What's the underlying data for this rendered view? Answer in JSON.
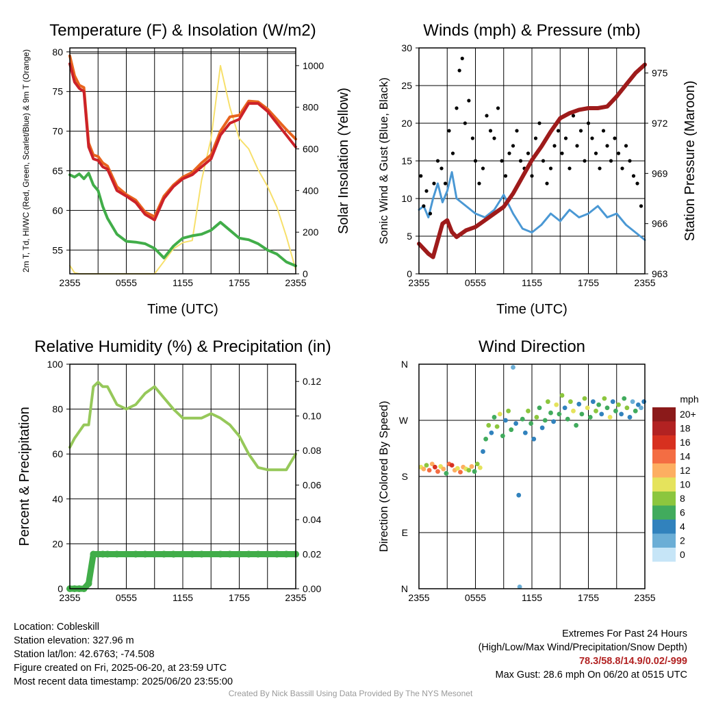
{
  "footer": {
    "location": "Location: Cobleskill",
    "elevation": "Station elevation: 327.96 m",
    "latlon": "Station lat/lon: 42.6763; -74.508",
    "created": "Figure created on Fri, 2025-06-20, at 23:59 UTC",
    "recent": "Most recent data timestamp: 2025/06/20 23:55:00",
    "extremes_title": "Extremes For Past 24 Hours",
    "extremes_sub": "(High/Low/Max Wind/Precipitation/Snow Depth)",
    "extremes_values": "78.3/58.8/14.9/0.02/-999",
    "max_gust": "Max Gust: 28.6 mph On 06/20 at 0515 UTC",
    "credit": "Created By Nick Bassill Using Data Provided By The NYS Mesonet"
  },
  "colors": {
    "temp": "#cc2229",
    "temp_hi": "#e8641e",
    "dew": "#41ad49",
    "solar": "#f7e06b",
    "gust": "#000000",
    "wind": "#4a98d4",
    "pressure": "#9e1b1b",
    "rh": "#96c85a",
    "precip": "#41ad49"
  },
  "chart_data": [
    {
      "type": "line",
      "title": "Temperature (F) & Insolation (W/m2)",
      "xlabel": "Time (UTC)",
      "ylabel": "2m T, Td, HI/WC (Red, Green, Scarlet/Blue) & 9m T (Orange)",
      "ylabel_right": "Solar Insolation (Yellow)",
      "x_ticks": [
        "2355",
        "0555",
        "1155",
        "1755",
        "2355"
      ],
      "ylim": [
        52,
        80.5
      ],
      "y_ticks": [
        55,
        60,
        65,
        70,
        75,
        80
      ],
      "ylim_right": [
        0,
        1085
      ],
      "y_ticks_right": [
        0,
        200,
        400,
        600,
        800,
        1000
      ],
      "grid": true,
      "x_hours": [
        0,
        0.5,
        1,
        1.5,
        2,
        2.5,
        3,
        3.5,
        4,
        5,
        6,
        7,
        8,
        9,
        10,
        11,
        12,
        13,
        14,
        15,
        16,
        17,
        18,
        19,
        20,
        21,
        22,
        23,
        24
      ],
      "series": [
        {
          "name": "2m T",
          "color_key": "temp",
          "values": [
            78.5,
            76.2,
            75.4,
            75.0,
            68.0,
            66.5,
            66.3,
            65.5,
            65.2,
            62.5,
            61.8,
            61.0,
            59.5,
            58.8,
            61.5,
            63.0,
            64.0,
            64.5,
            65.5,
            66.5,
            69.5,
            71.0,
            71.5,
            73.5,
            73.5,
            72.5,
            71.0,
            69.5,
            68.0
          ]
        },
        {
          "name": "9m T",
          "color_key": "temp_hi",
          "values": [
            79.5,
            77.0,
            75.8,
            75.5,
            68.5,
            67.0,
            66.8,
            66.0,
            65.6,
            63.0,
            62.0,
            61.3,
            59.8,
            59.2,
            61.8,
            63.2,
            64.2,
            64.8,
            66.0,
            67.0,
            70.0,
            71.8,
            72.0,
            73.8,
            73.7,
            72.8,
            71.5,
            70.2,
            69.0
          ]
        },
        {
          "name": "Td",
          "color_key": "dew",
          "values": [
            64.5,
            64.2,
            64.6,
            64.0,
            64.7,
            63.2,
            62.5,
            60.5,
            59.0,
            57.0,
            56.1,
            56.0,
            55.8,
            55.2,
            54.0,
            55.5,
            56.5,
            56.8,
            57.0,
            57.5,
            58.5,
            57.5,
            56.5,
            56.3,
            55.8,
            55.0,
            54.5,
            53.5,
            53.0
          ]
        },
        {
          "name": "Solar",
          "axis": "right",
          "color_key": "solar",
          "values": [
            40,
            5,
            0,
            0,
            0,
            0,
            0,
            0,
            0,
            0,
            0,
            0,
            0,
            0,
            60,
            120,
            150,
            160,
            450,
            650,
            1000,
            800,
            650,
            600,
            500,
            420,
            320,
            180,
            20
          ]
        }
      ]
    },
    {
      "type": "line",
      "title": "Winds (mph) & Pressure (mb)",
      "xlabel": "Time (UTC)",
      "ylabel": "Sonic Wind & Gust (Blue, Black)",
      "ylabel_right": "Station Pressure (Maroon)",
      "x_ticks": [
        "2355",
        "0555",
        "1155",
        "1755",
        "2355"
      ],
      "ylim": [
        0,
        30
      ],
      "y_ticks": [
        0,
        5,
        10,
        15,
        20,
        25,
        30
      ],
      "ylim_right": [
        963,
        976.5
      ],
      "y_ticks_right": [
        963,
        966,
        969,
        972,
        975
      ],
      "grid": true,
      "x_hours": [
        0,
        0.5,
        1,
        1.5,
        2,
        2.5,
        3,
        3.5,
        4,
        5,
        6,
        7,
        8,
        9,
        10,
        11,
        12,
        13,
        14,
        15,
        16,
        17,
        18,
        19,
        20,
        21,
        22,
        23,
        24
      ],
      "series": [
        {
          "name": "Sonic Wind",
          "color_key": "wind",
          "values": [
            8.5,
            9.0,
            7.5,
            10.0,
            12.0,
            9.5,
            11.0,
            13.5,
            10.0,
            9.0,
            8.0,
            7.5,
            8.5,
            10.5,
            8.0,
            6.0,
            5.5,
            6.5,
            8.0,
            7.0,
            8.5,
            7.5,
            8.0,
            9.0,
            7.5,
            8.0,
            6.5,
            5.5,
            4.5
          ]
        },
        {
          "name": "Gust",
          "color_key": "gust",
          "points": [
            [
              0.2,
              13
            ],
            [
              0.5,
              9
            ],
            [
              0.8,
              11
            ],
            [
              1.2,
              8
            ],
            [
              1.6,
              12
            ],
            [
              2.0,
              15
            ],
            [
              2.4,
              14
            ],
            [
              2.8,
              12
            ],
            [
              3.2,
              19
            ],
            [
              3.6,
              16
            ],
            [
              4.0,
              22
            ],
            [
              4.3,
              27
            ],
            [
              4.6,
              28.6
            ],
            [
              4.9,
              20
            ],
            [
              5.3,
              23
            ],
            [
              5.7,
              18
            ],
            [
              6.0,
              15
            ],
            [
              6.4,
              12
            ],
            [
              6.8,
              14
            ],
            [
              7.2,
              21
            ],
            [
              7.6,
              19
            ],
            [
              8.0,
              18
            ],
            [
              8.4,
              22
            ],
            [
              8.8,
              15
            ],
            [
              9.2,
              13
            ],
            [
              9.6,
              16
            ],
            [
              10.0,
              17
            ],
            [
              10.4,
              19
            ],
            [
              10.8,
              15
            ],
            [
              11.2,
              14
            ],
            [
              11.6,
              16
            ],
            [
              12.0,
              13
            ],
            [
              12.4,
              18
            ],
            [
              12.8,
              20
            ],
            [
              13.2,
              15
            ],
            [
              13.6,
              12
            ],
            [
              14.0,
              14
            ],
            [
              14.4,
              17
            ],
            [
              14.8,
              19
            ],
            [
              15.2,
              16
            ],
            [
              15.6,
              18
            ],
            [
              16.0,
              14
            ],
            [
              16.4,
              21
            ],
            [
              16.8,
              17
            ],
            [
              17.2,
              19
            ],
            [
              17.6,
              15
            ],
            [
              18.0,
              20
            ],
            [
              18.4,
              18
            ],
            [
              18.8,
              16
            ],
            [
              19.2,
              14
            ],
            [
              19.6,
              19
            ],
            [
              20.0,
              17
            ],
            [
              20.4,
              15
            ],
            [
              20.8,
              18
            ],
            [
              21.2,
              16
            ],
            [
              21.6,
              14
            ],
            [
              22.0,
              17
            ],
            [
              22.4,
              15
            ],
            [
              22.8,
              13
            ],
            [
              23.2,
              12
            ],
            [
              23.6,
              9
            ]
          ]
        },
        {
          "name": "Pressure",
          "axis": "right",
          "color_key": "pressure",
          "values": [
            964.8,
            964.5,
            964.2,
            964.0,
            965.0,
            966.0,
            966.2,
            965.5,
            965.2,
            965.6,
            965.8,
            966.2,
            966.6,
            967.0,
            967.8,
            968.8,
            969.8,
            970.6,
            971.5,
            972.3,
            972.6,
            972.8,
            972.9,
            972.9,
            973.0,
            973.6,
            974.3,
            975.0,
            975.5
          ]
        }
      ]
    },
    {
      "type": "line",
      "title": "Relative Humidity (%) & Precipitation (in)",
      "xlabel": "",
      "ylabel": "Percent & Precipitation",
      "x_ticks": [
        "2355",
        "0555",
        "1155",
        "1755",
        "2355"
      ],
      "ylim": [
        0,
        100
      ],
      "y_ticks": [
        0,
        20,
        40,
        60,
        80,
        100
      ],
      "ylim_right": [
        0,
        0.13
      ],
      "y_ticks_right": [
        "0.00",
        "0.02",
        "0.04",
        "0.06",
        "0.08",
        "0.10",
        "0.12"
      ],
      "grid": true,
      "x_hours": [
        0,
        0.5,
        1,
        1.5,
        2,
        2.5,
        3,
        3.5,
        4,
        5,
        6,
        7,
        8,
        9,
        10,
        11,
        12,
        13,
        14,
        15,
        16,
        17,
        18,
        19,
        20,
        21,
        22,
        23,
        24
      ],
      "series": [
        {
          "name": "RH",
          "color_key": "rh",
          "values": [
            63,
            67,
            70,
            73,
            73,
            90,
            92,
            90,
            90,
            82,
            80,
            82,
            87,
            90,
            85,
            80,
            76,
            76,
            76,
            78,
            76,
            73,
            68,
            60,
            54,
            53,
            53,
            53,
            60
          ]
        },
        {
          "name": "Precipitation",
          "axis": "right",
          "color_key": "precip",
          "values": [
            0,
            0,
            0,
            0,
            0.003,
            0.02,
            0.02,
            0.02,
            0.02,
            0.02,
            0.02,
            0.02,
            0.02,
            0.02,
            0.02,
            0.02,
            0.02,
            0.02,
            0.02,
            0.02,
            0.02,
            0.02,
            0.02,
            0.02,
            0.02,
            0.02,
            0.02,
            0.02,
            0.02
          ]
        }
      ]
    },
    {
      "type": "scatter",
      "title": "Wind Direction",
      "xlabel": "",
      "ylabel": "Direction (Colored By Speed)",
      "x_ticks": [
        "2355",
        "0555",
        "1155",
        "1755",
        "2355"
      ],
      "y_ticks": [
        "N",
        "E",
        "S",
        "W",
        "N"
      ],
      "ylim": [
        0,
        360
      ],
      "grid": true,
      "colorbar": {
        "title": "mph",
        "labels": [
          "20+",
          "18",
          "16",
          "14",
          "12",
          "10",
          "8",
          "6",
          "4",
          "2",
          "0"
        ],
        "colors": [
          "#8b1a1a",
          "#b22222",
          "#d7301f",
          "#f46d43",
          "#fdae61",
          "#e5e35c",
          "#8cc63e",
          "#41ab5d",
          "#3182bd",
          "#6baed6",
          "#c6e5f7"
        ]
      },
      "points": [
        [
          0.2,
          195,
          10
        ],
        [
          0.5,
          192,
          12
        ],
        [
          0.8,
          198,
          8
        ],
        [
          1.1,
          190,
          14
        ],
        [
          1.4,
          200,
          12
        ],
        [
          1.7,
          195,
          16
        ],
        [
          2.0,
          188,
          14
        ],
        [
          2.3,
          196,
          10
        ],
        [
          2.6,
          192,
          12
        ],
        [
          2.9,
          185,
          6
        ],
        [
          3.2,
          200,
          14
        ],
        [
          3.5,
          198,
          16
        ],
        [
          3.8,
          190,
          12
        ],
        [
          4.1,
          193,
          10
        ],
        [
          4.4,
          187,
          14
        ],
        [
          4.7,
          195,
          12
        ],
        [
          5.0,
          192,
          10
        ],
        [
          5.3,
          190,
          8
        ],
        [
          5.6,
          196,
          12
        ],
        [
          5.9,
          188,
          6
        ],
        [
          6.2,
          200,
          8
        ],
        [
          6.5,
          194,
          10
        ],
        [
          6.8,
          220,
          4
        ],
        [
          7.1,
          240,
          6
        ],
        [
          7.4,
          262,
          8
        ],
        [
          7.7,
          250,
          4
        ],
        [
          8.0,
          275,
          6
        ],
        [
          8.3,
          260,
          8
        ],
        [
          8.6,
          280,
          10
        ],
        [
          8.9,
          245,
          6
        ],
        [
          9.2,
          270,
          4
        ],
        [
          9.5,
          285,
          8
        ],
        [
          9.8,
          255,
          6
        ],
        [
          10.0,
          355,
          2
        ],
        [
          10.3,
          265,
          4
        ],
        [
          10.6,
          150,
          3
        ],
        [
          10.7,
          3,
          2
        ],
        [
          11.0,
          272,
          6
        ],
        [
          11.3,
          250,
          4
        ],
        [
          11.6,
          285,
          8
        ],
        [
          11.9,
          265,
          6
        ],
        [
          12.2,
          240,
          4
        ],
        [
          12.5,
          275,
          8
        ],
        [
          12.8,
          290,
          6
        ],
        [
          13.1,
          258,
          4
        ],
        [
          13.4,
          270,
          6
        ],
        [
          13.7,
          300,
          8
        ],
        [
          14.0,
          282,
          6
        ],
        [
          14.3,
          268,
          4
        ],
        [
          14.6,
          295,
          10
        ],
        [
          14.9,
          280,
          6
        ],
        [
          15.2,
          310,
          8
        ],
        [
          15.5,
          290,
          4
        ],
        [
          15.8,
          272,
          6
        ],
        [
          16.1,
          300,
          8
        ],
        [
          16.4,
          285,
          10
        ],
        [
          16.7,
          262,
          6
        ],
        [
          17.0,
          296,
          4
        ],
        [
          17.3,
          280,
          6
        ],
        [
          17.6,
          305,
          8
        ],
        [
          17.9,
          290,
          10
        ],
        [
          18.2,
          275,
          6
        ],
        [
          18.5,
          300,
          4
        ],
        [
          18.8,
          285,
          8
        ],
        [
          19.1,
          295,
          6
        ],
        [
          19.4,
          280,
          4
        ],
        [
          19.7,
          305,
          8
        ],
        [
          20.0,
          290,
          6
        ],
        [
          20.3,
          275,
          10
        ],
        [
          20.6,
          300,
          4
        ],
        [
          20.9,
          285,
          6
        ],
        [
          21.2,
          295,
          8
        ],
        [
          21.5,
          280,
          4
        ],
        [
          21.8,
          305,
          6
        ],
        [
          22.1,
          290,
          8
        ],
        [
          22.4,
          275,
          4
        ],
        [
          22.7,
          300,
          2
        ],
        [
          23.0,
          285,
          6
        ],
        [
          23.3,
          295,
          4
        ],
        [
          23.6,
          290,
          2
        ],
        [
          23.9,
          300,
          4
        ]
      ]
    }
  ]
}
